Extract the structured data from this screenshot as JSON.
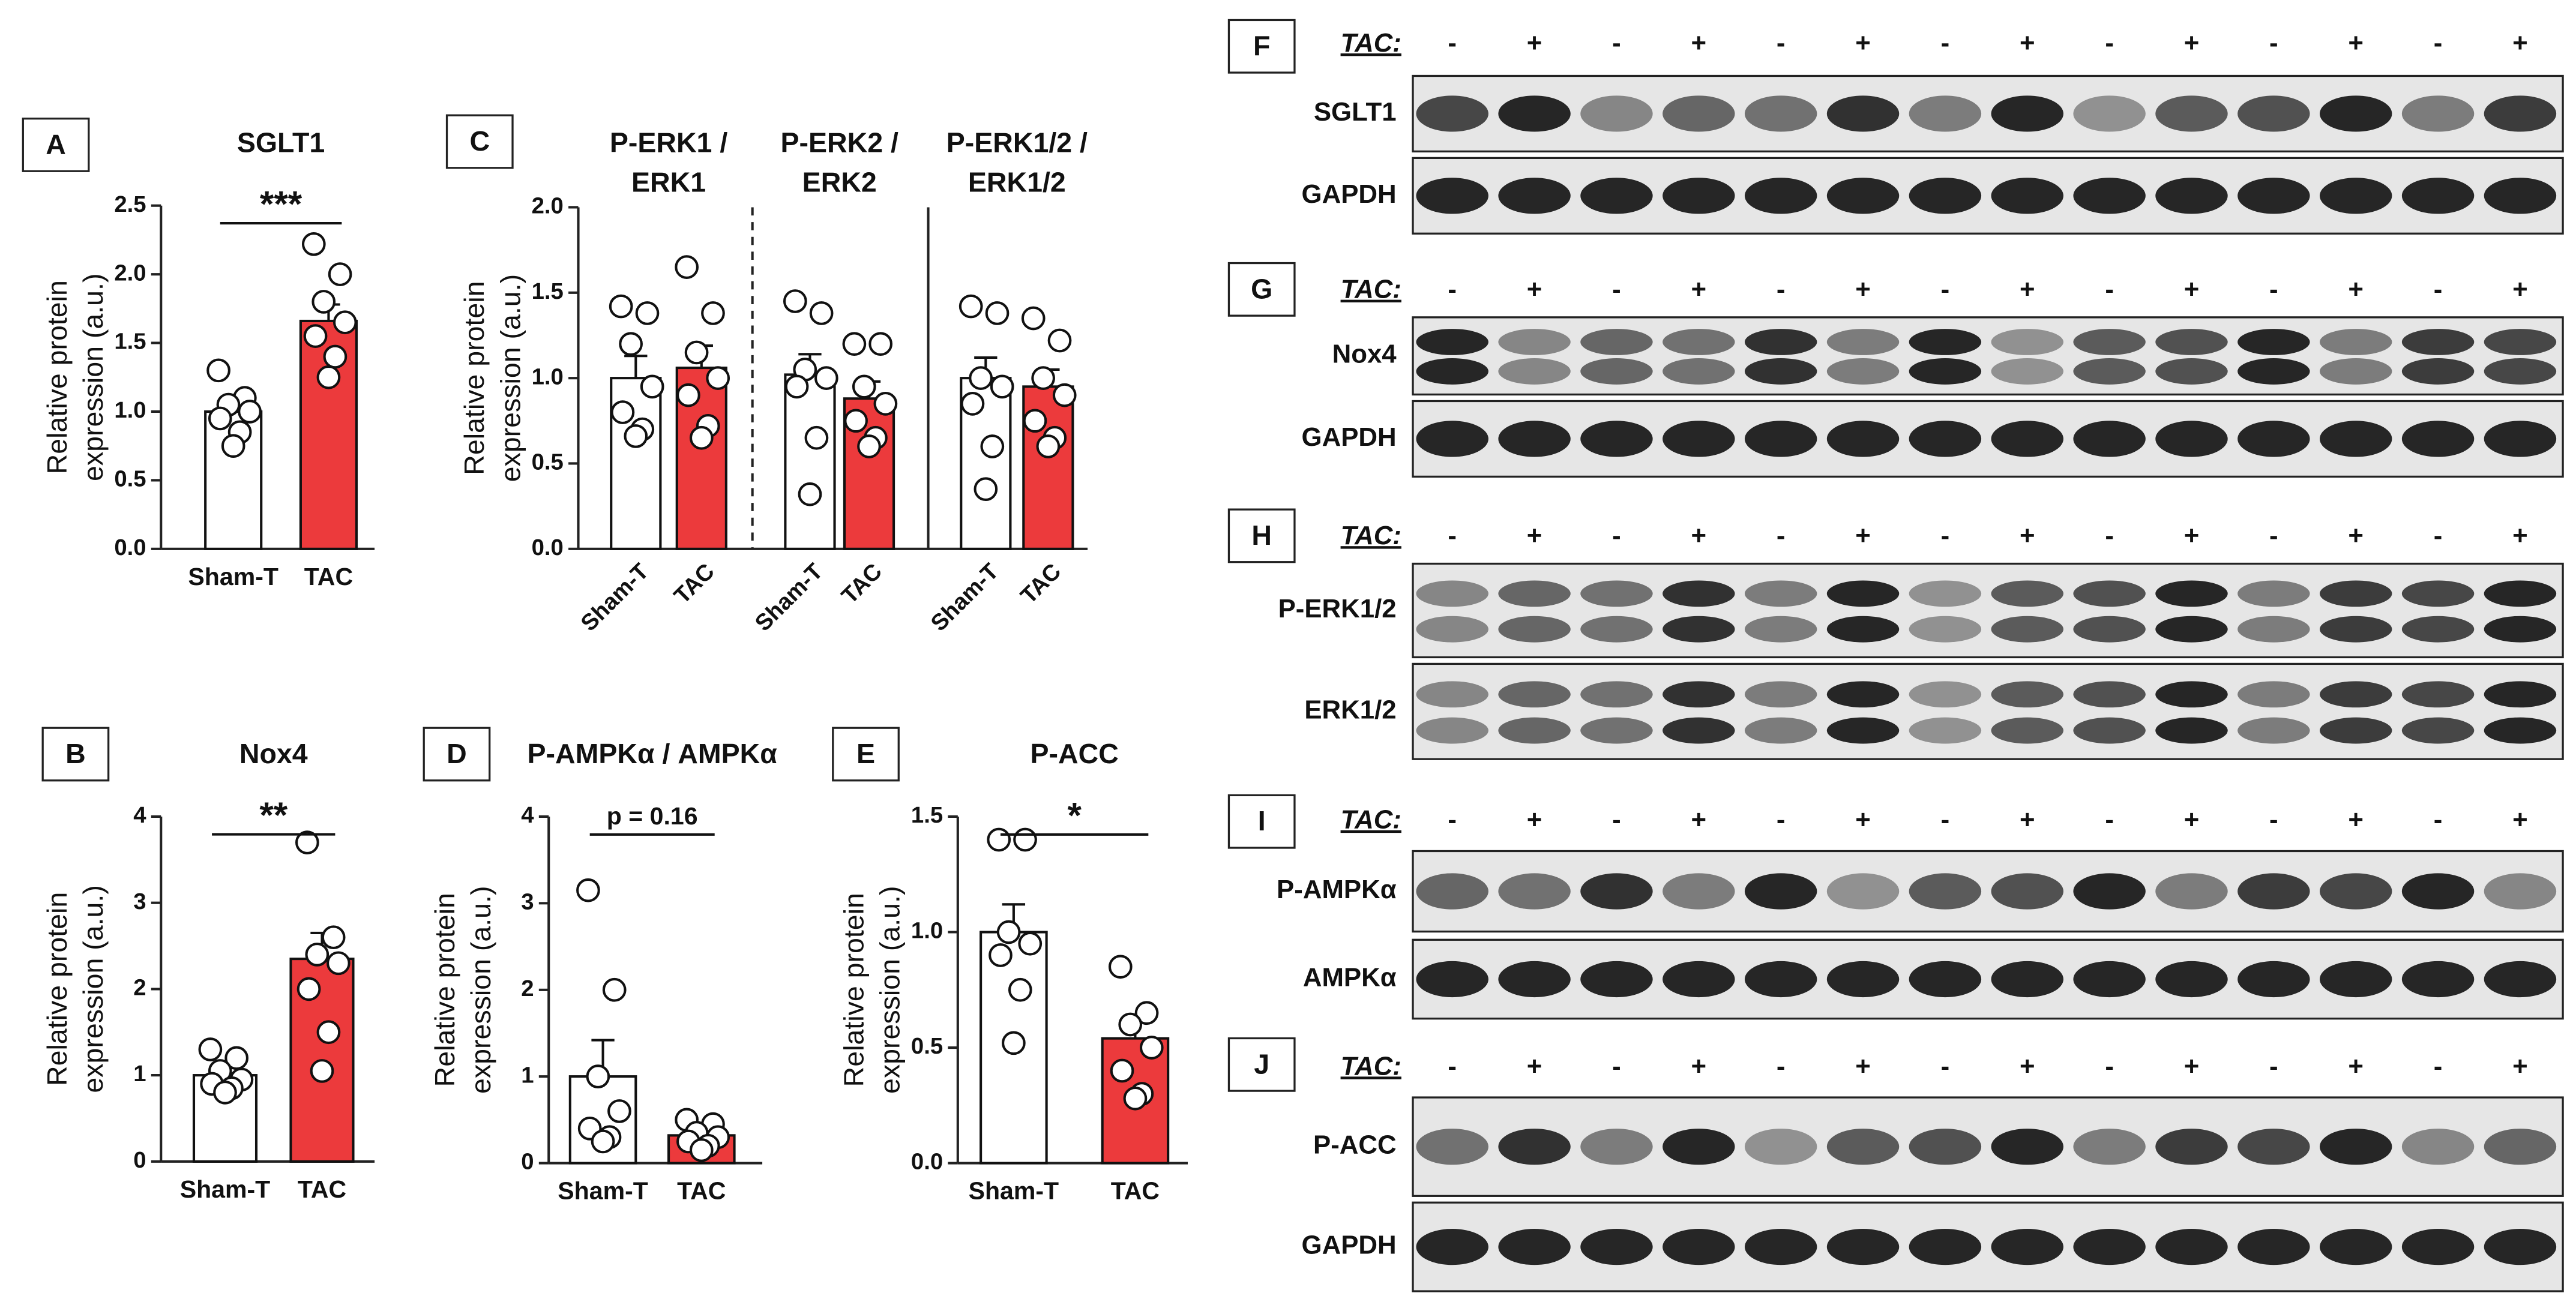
{
  "chart_data": [
    {
      "type": "bar",
      "panel": "A",
      "ylabel": [
        "Relative protein",
        "expression (a.u.)"
      ],
      "ylim": [
        0,
        2.5
      ],
      "yticks": [
        {
          "value": 0,
          "label": "0.0"
        },
        0.5,
        {
          "value": 1,
          "label": "1.0"
        },
        1.5,
        {
          "value": 2,
          "label": "2.0"
        },
        2.5
      ],
      "bar_colors": [
        "#ffffff",
        "#ec3a3c"
      ],
      "groups": [
        {
          "title": [
            "SGLT1"
          ],
          "categories": [
            "Sham-T",
            "TAC"
          ],
          "values": [
            1.0,
            1.66
          ],
          "errors": [
            0.07,
            0.12
          ],
          "points": [
            [
              1.3,
              1.1,
              1.05,
              1.0,
              0.95,
              0.85,
              0.75
            ],
            [
              2.22,
              2.0,
              1.8,
              1.65,
              1.55,
              1.4,
              1.25
            ]
          ],
          "significance": "***"
        }
      ]
    },
    {
      "type": "bar",
      "panel": "B",
      "ylabel": [
        "Relative protein",
        "expression (a.u.)"
      ],
      "ylim": [
        0,
        4
      ],
      "yticks": [
        0,
        1,
        2,
        3,
        4
      ],
      "bar_colors": [
        "#ffffff",
        "#ec3a3c"
      ],
      "groups": [
        {
          "title": [
            "Nox4"
          ],
          "categories": [
            "Sham-T",
            "TAC"
          ],
          "values": [
            1.0,
            2.35
          ],
          "errors": [
            0.1,
            0.3
          ],
          "points": [
            [
              1.3,
              1.2,
              1.05,
              0.95,
              0.9,
              0.85,
              0.8
            ],
            [
              3.7,
              2.6,
              2.4,
              2.3,
              2.0,
              1.5,
              1.05
            ]
          ],
          "significance": "**"
        }
      ]
    },
    {
      "type": "bar",
      "panel": "C",
      "ylabel": [
        "Relative protein",
        "expression (a.u.)"
      ],
      "ylim": [
        0,
        2.0
      ],
      "yticks": [
        {
          "value": 0,
          "label": "0.0"
        },
        0.5,
        {
          "value": 1,
          "label": "1.0"
        },
        1.5,
        {
          "value": 2,
          "label": "2.0"
        }
      ],
      "bar_colors": [
        "#ffffff",
        "#ec3a3c"
      ],
      "groups": [
        {
          "title": [
            "P-ERK1 /",
            "ERK1"
          ],
          "categories": [
            "Sham-T",
            "TAC"
          ],
          "values": [
            1.0,
            1.06
          ],
          "errors": [
            0.13,
            0.13
          ],
          "points": [
            [
              1.42,
              1.38,
              1.2,
              0.95,
              0.8,
              0.7,
              0.66
            ],
            [
              1.65,
              1.38,
              1.15,
              1.0,
              0.9,
              0.72,
              0.65
            ]
          ]
        },
        {
          "title": [
            "P-ERK2 /",
            "ERK2"
          ],
          "categories": [
            "Sham-T",
            "TAC"
          ],
          "values": [
            1.02,
            0.88
          ],
          "errors": [
            0.12,
            0.1
          ],
          "points": [
            [
              1.45,
              1.38,
              1.05,
              1.0,
              0.95,
              0.65,
              0.32
            ],
            [
              1.2,
              1.2,
              0.95,
              0.85,
              0.75,
              0.65,
              0.6
            ]
          ]
        },
        {
          "title": [
            "P-ERK1/2 /",
            "ERK1/2"
          ],
          "categories": [
            "Sham-T",
            "TAC"
          ],
          "values": [
            1.0,
            0.95
          ],
          "errors": [
            0.12,
            0.1
          ],
          "points": [
            [
              1.42,
              1.38,
              1.0,
              0.95,
              0.85,
              0.6,
              0.35
            ],
            [
              1.35,
              1.22,
              1.0,
              0.9,
              0.75,
              0.65,
              0.6
            ]
          ]
        }
      ]
    },
    {
      "type": "bar",
      "panel": "D",
      "ylabel": [
        "Relative protein",
        "expression (a.u.)"
      ],
      "ylim": [
        0,
        4
      ],
      "yticks": [
        0,
        1,
        2,
        3,
        4
      ],
      "bar_colors": [
        "#ffffff",
        "#ec3a3c"
      ],
      "groups": [
        {
          "title": [
            "P-AMPKα / AMPKα"
          ],
          "categories": [
            "Sham-T",
            "TAC"
          ],
          "values": [
            1.0,
            0.32
          ],
          "errors": [
            0.42,
            0.05
          ],
          "points": [
            [
              3.15,
              2.0,
              1.0,
              0.6,
              0.4,
              0.3,
              0.25
            ],
            [
              0.5,
              0.45,
              0.35,
              0.3,
              0.25,
              0.2,
              0.15
            ]
          ],
          "significance": "p = 0.16"
        }
      ]
    },
    {
      "type": "bar",
      "panel": "E",
      "ylabel": [
        "Relative protein",
        "expression (a.u.)"
      ],
      "ylim": [
        0,
        1.5
      ],
      "yticks": [
        {
          "value": 0,
          "label": "0.0"
        },
        0.5,
        {
          "value": 1,
          "label": "1.0"
        },
        1.5
      ],
      "bar_colors": [
        "#ffffff",
        "#ec3a3c"
      ],
      "groups": [
        {
          "title": [
            "P-ACC"
          ],
          "categories": [
            "Sham-T",
            "TAC"
          ],
          "values": [
            1.0,
            0.54
          ],
          "errors": [
            0.12,
            0.09
          ],
          "points": [
            [
              1.4,
              1.4,
              1.0,
              0.95,
              0.9,
              0.75,
              0.52
            ],
            [
              0.85,
              0.65,
              0.6,
              0.5,
              0.4,
              0.3,
              0.28
            ]
          ],
          "significance": "*"
        }
      ]
    }
  ],
  "blots": [
    {
      "panel": "F",
      "tac_label": "TAC:",
      "lanes": [
        "-",
        "+",
        "-",
        "+",
        "-",
        "+",
        "-",
        "+",
        "-",
        "+",
        "-",
        "+",
        "-",
        "+"
      ],
      "rows": [
        "SGLT1",
        "GAPDH"
      ]
    },
    {
      "panel": "G",
      "tac_label": "TAC:",
      "lanes": [
        "-",
        "+",
        "-",
        "+",
        "-",
        "+",
        "-",
        "+",
        "-",
        "+",
        "-",
        "+",
        "-",
        "+"
      ],
      "rows": [
        "Nox4",
        "GAPDH"
      ]
    },
    {
      "panel": "H",
      "tac_label": "TAC:",
      "lanes": [
        "-",
        "+",
        "-",
        "+",
        "-",
        "+",
        "-",
        "+",
        "-",
        "+",
        "-",
        "+",
        "-",
        "+"
      ],
      "rows": [
        "P-ERK1/2",
        "ERK1/2"
      ]
    },
    {
      "panel": "I",
      "tac_label": "TAC:",
      "lanes": [
        "-",
        "+",
        "-",
        "+",
        "-",
        "+",
        "-",
        "+",
        "-",
        "+",
        "-",
        "+",
        "-",
        "+"
      ],
      "rows": [
        "P-AMPKα",
        "AMPKα"
      ]
    },
    {
      "panel": "J",
      "tac_label": "TAC:",
      "lanes": [
        "-",
        "+",
        "-",
        "+",
        "-",
        "+",
        "-",
        "+",
        "-",
        "+",
        "-",
        "+",
        "-",
        "+"
      ],
      "rows": [
        "P-ACC",
        "GAPDH"
      ]
    }
  ]
}
